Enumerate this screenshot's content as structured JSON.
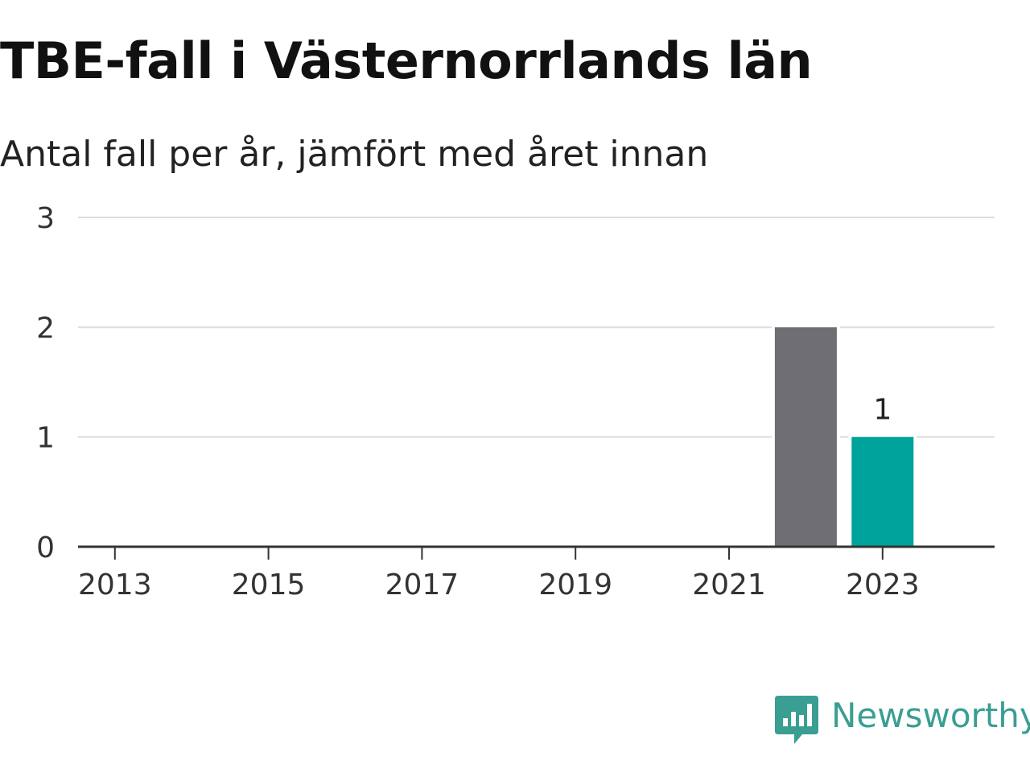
{
  "chart_data": {
    "type": "bar",
    "title": "TBE-fall i Västernorrlands län",
    "subtitle": "Antal fall per år, jämfört med året innan",
    "x": [
      2013,
      2014,
      2015,
      2016,
      2017,
      2018,
      2019,
      2020,
      2021,
      2022,
      2023
    ],
    "x_tick_labels": [
      "2013",
      "2015",
      "2017",
      "2019",
      "2021",
      "2023"
    ],
    "series": [
      {
        "color": "#6f6e73",
        "values": [
          0,
          0,
          0,
          0,
          0,
          0,
          0,
          0,
          0,
          2,
          0
        ]
      },
      {
        "color": "#00a39b",
        "values": [
          0,
          0,
          0,
          0,
          0,
          0,
          0,
          0,
          0,
          0,
          1
        ]
      }
    ],
    "data_labels": [
      {
        "x": 2023,
        "text": "1"
      }
    ],
    "y_ticks": [
      0,
      1,
      2,
      3
    ],
    "ylim": [
      0,
      3
    ],
    "xlim": [
      2012.5,
      2023.5
    ],
    "grid": true,
    "legend": "none"
  },
  "branding": {
    "logo_text": "Newsworthy",
    "logo_icon": "bar-chart-speech-bubble-icon",
    "logo_color": "#3a9e93"
  }
}
